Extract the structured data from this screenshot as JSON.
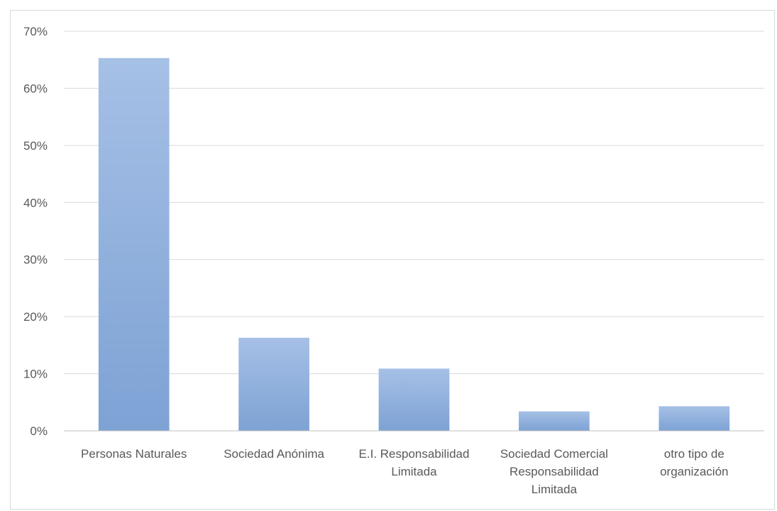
{
  "chart_data": {
    "type": "bar",
    "title": "",
    "xlabel": "",
    "ylabel": "",
    "categories": [
      [
        "Personas Naturales"
      ],
      [
        "Sociedad Anónima"
      ],
      [
        "E.I. Responsabilidad",
        "Limitada"
      ],
      [
        "Sociedad Comercial",
        "Responsabilidad",
        "Limitada"
      ],
      [
        "otro tipo de",
        "organización"
      ]
    ],
    "values": [
      65.3,
      16.3,
      10.9,
      3.4,
      4.3
    ],
    "ylim": [
      0,
      70
    ],
    "yticks": [
      0,
      10,
      20,
      30,
      40,
      50,
      60,
      70
    ],
    "ytick_labels": [
      "0%",
      "10%",
      "20%",
      "30%",
      "40%",
      "50%",
      "60%",
      "70%"
    ],
    "grid": true,
    "legend": "none",
    "colors": {
      "bar_top": "#a6c0e6",
      "bar_bottom": "#7da2d4",
      "gridline": "#d9d9d9",
      "axis": "#bfbfbf",
      "text": "#595959"
    }
  }
}
